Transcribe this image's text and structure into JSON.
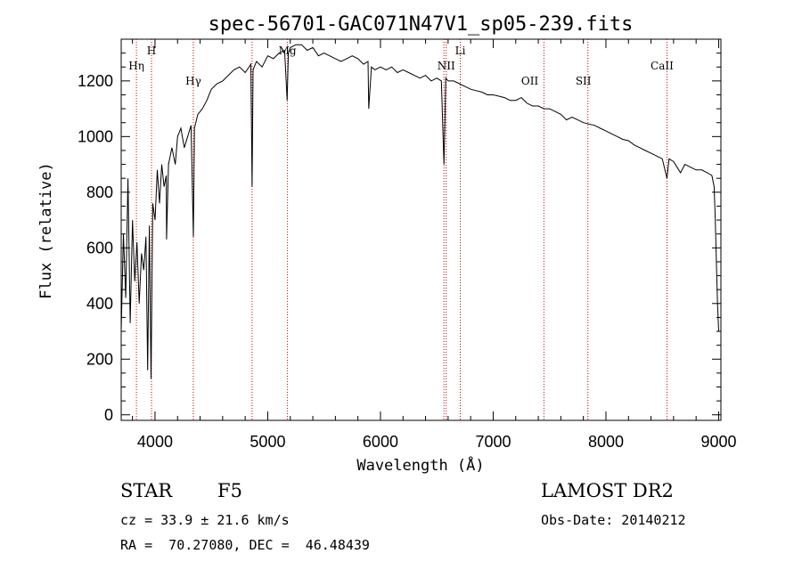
{
  "chart_data": {
    "type": "line",
    "title": "spec-56701-GAC071N47V1_sp05-239.fits",
    "xlabel": "Wavelength (Å)",
    "ylabel": "Flux (relative)",
    "xlim": [
      3700,
      9020
    ],
    "ylim": [
      -20,
      1350
    ],
    "xticks": [
      4000,
      5000,
      6000,
      7000,
      8000,
      9000
    ],
    "yticks": [
      0,
      200,
      400,
      600,
      800,
      1000,
      1200
    ],
    "grid": false,
    "series": [
      {
        "color": "#000000",
        "x": [
          3700,
          3720,
          3740,
          3760,
          3780,
          3800,
          3820,
          3840,
          3860,
          3880,
          3900,
          3920,
          3935,
          3950,
          3965,
          3980,
          4000,
          4020,
          4040,
          4060,
          4080,
          4100,
          4102,
          4120,
          4150,
          4180,
          4200,
          4230,
          4260,
          4290,
          4320,
          4340,
          4350,
          4380,
          4420,
          4460,
          4500,
          4550,
          4600,
          4650,
          4700,
          4750,
          4800,
          4850,
          4861,
          4870,
          4900,
          4950,
          5000,
          5050,
          5100,
          5150,
          5172,
          5183,
          5200,
          5250,
          5300,
          5350,
          5400,
          5450,
          5500,
          5550,
          5600,
          5650,
          5700,
          5750,
          5800,
          5850,
          5890,
          5896,
          5920,
          5950,
          6000,
          6050,
          6100,
          6150,
          6200,
          6250,
          6300,
          6350,
          6400,
          6450,
          6500,
          6540,
          6563,
          6580,
          6600,
          6650,
          6700,
          6750,
          6800,
          6850,
          6900,
          6950,
          7000,
          7050,
          7100,
          7150,
          7200,
          7250,
          7300,
          7350,
          7400,
          7450,
          7500,
          7550,
          7600,
          7650,
          7700,
          7750,
          7800,
          7850,
          7900,
          7950,
          8000,
          8050,
          8100,
          8150,
          8200,
          8250,
          8300,
          8350,
          8400,
          8450,
          8500,
          8542,
          8560,
          8600,
          8662,
          8700,
          8750,
          8800,
          8850,
          8900,
          8940,
          8960,
          8970,
          8980,
          8990,
          9000
        ],
        "y": [
          300,
          650,
          420,
          850,
          330,
          700,
          480,
          620,
          400,
          580,
          520,
          640,
          160,
          680,
          130,
          760,
          700,
          880,
          760,
          900,
          820,
          860,
          630,
          900,
          960,
          900,
          1000,
          1030,
          960,
          1000,
          1040,
          640,
          1030,
          1080,
          1100,
          1130,
          1170,
          1190,
          1200,
          1220,
          1240,
          1250,
          1230,
          1260,
          820,
          1240,
          1270,
          1250,
          1290,
          1280,
          1300,
          1310,
          1130,
          1300,
          1320,
          1330,
          1330,
          1310,
          1320,
          1290,
          1300,
          1290,
          1280,
          1270,
          1280,
          1290,
          1280,
          1260,
          1270,
          1100,
          1250,
          1240,
          1250,
          1240,
          1250,
          1230,
          1240,
          1230,
          1220,
          1210,
          1220,
          1200,
          1210,
          1200,
          900,
          1210,
          1200,
          1200,
          1190,
          1180,
          1170,
          1165,
          1160,
          1150,
          1150,
          1145,
          1140,
          1130,
          1130,
          1140,
          1120,
          1110,
          1110,
          1100,
          1100,
          1090,
          1080,
          1060,
          1070,
          1060,
          1050,
          1045,
          1040,
          1030,
          1020,
          1010,
          1000,
          990,
          985,
          970,
          960,
          950,
          940,
          930,
          920,
          850,
          920,
          910,
          870,
          900,
          890,
          880,
          880,
          870,
          860,
          820,
          700,
          550,
          400,
          300
        ]
      }
    ],
    "annotations": [
      {
        "label": "Hη",
        "x": 3835,
        "row": "high"
      },
      {
        "label": "H",
        "x": 3969,
        "row": "top"
      },
      {
        "label": "Hγ",
        "x": 4340,
        "row": "mid"
      },
      {
        "label": "Mg",
        "x": 5175,
        "row": "top"
      },
      {
        "label": "NII",
        "x": 6583,
        "row": "high"
      },
      {
        "label": "Li",
        "x": 6708,
        "row": "top"
      },
      {
        "label": "OII",
        "x": 7325,
        "row": "mid"
      },
      {
        "label": "SII",
        "x": 7800,
        "row": "mid"
      },
      {
        "label": "CaII",
        "x": 8498,
        "row": "high"
      }
    ],
    "line_markers": [
      3835,
      3969,
      4340,
      4861,
      5175,
      6563,
      6583,
      6708,
      7450,
      7840,
      8542
    ]
  },
  "info": {
    "object_class": "STAR",
    "subclass": "F5",
    "survey": "LAMOST DR2",
    "redshift": "cz = 33.9 ± 21.6 km/s",
    "obs_date": "Obs-Date: 20140212",
    "coords": "RA =  70.27080, DEC =  46.48439"
  }
}
